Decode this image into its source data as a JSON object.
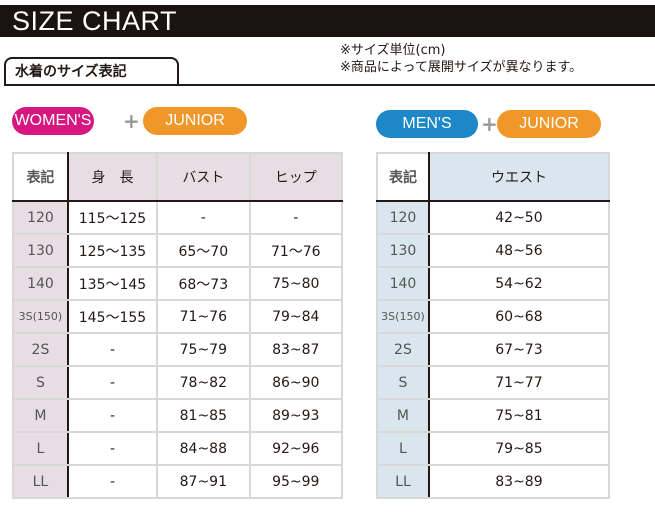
{
  "title": "SIZE CHART",
  "tab_label": "水着のサイズ表記",
  "notes": [
    "※サイズ単位(cm)",
    "※商品によって展開サイズが異なります。"
  ],
  "colors": {
    "women": "#d6177f",
    "junior": "#f0972a",
    "men": "#1d87c8"
  },
  "women": {
    "badge": "WOMEN'S",
    "plus": "+",
    "junior": "JUNIOR",
    "headers": [
      "表記",
      "身　長",
      "バスト",
      "ヒップ"
    ],
    "rows": [
      [
        "120",
        "115～125",
        "-",
        "-"
      ],
      [
        "130",
        "125～135",
        "65～70",
        "71～76"
      ],
      [
        "140",
        "135～145",
        "68～73",
        "75~80"
      ],
      [
        "3S(150)",
        "145～155",
        "71~76",
        "79~84"
      ],
      [
        "2S",
        "-",
        "75~79",
        "83~87"
      ],
      [
        "S",
        "-",
        "78~82",
        "86~90"
      ],
      [
        "M",
        "-",
        "81~85",
        "89~93"
      ],
      [
        "L",
        "-",
        "84~88",
        "92~96"
      ],
      [
        "LL",
        "-",
        "87~91",
        "95~99"
      ]
    ]
  },
  "men": {
    "badge": "MEN'S",
    "plus": "+",
    "junior": "JUNIOR",
    "headers": [
      "表記",
      "ウエスト"
    ],
    "rows": [
      [
        "120",
        "42~50"
      ],
      [
        "130",
        "48~56"
      ],
      [
        "140",
        "54~62"
      ],
      [
        "3S(150)",
        "60~68"
      ],
      [
        "2S",
        "67~73"
      ],
      [
        "S",
        "71~77"
      ],
      [
        "M",
        "75~81"
      ],
      [
        "L",
        "79~85"
      ],
      [
        "LL",
        "83~89"
      ]
    ]
  }
}
